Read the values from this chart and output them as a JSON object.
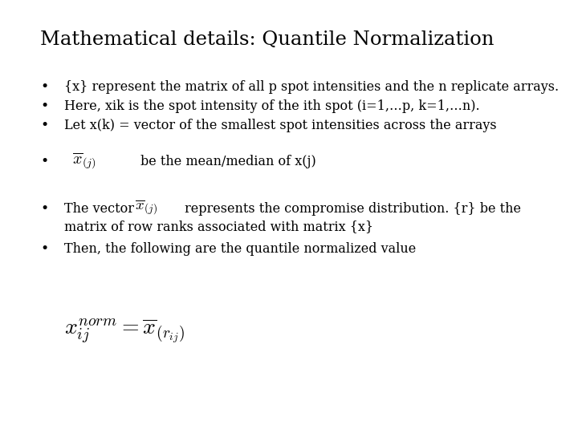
{
  "title": "Mathematical details: Quantile Normalization",
  "background_color": "#ffffff",
  "text_color": "#000000",
  "title_fontsize": 17.5,
  "body_fontsize": 11.5,
  "bullet1": "{x} represent the matrix of all p spot intensities and the n replicate arrays.",
  "bullet2": "Here, xik is the spot intensity of the ith spot (i=1,…p, k=1,…n).",
  "bullet3": "Let x(k) = vector of the smallest spot intensities across the arrays",
  "bullet4_text": "     be the mean/median of x(j)",
  "bullet5_text1": "The vector",
  "bullet5_text2": "represents the compromise distribution. {r} be the",
  "bullet5_text3": "matrix of row ranks associated with matrix {x}",
  "bullet6": "Then, the following are the quantile normalized value"
}
